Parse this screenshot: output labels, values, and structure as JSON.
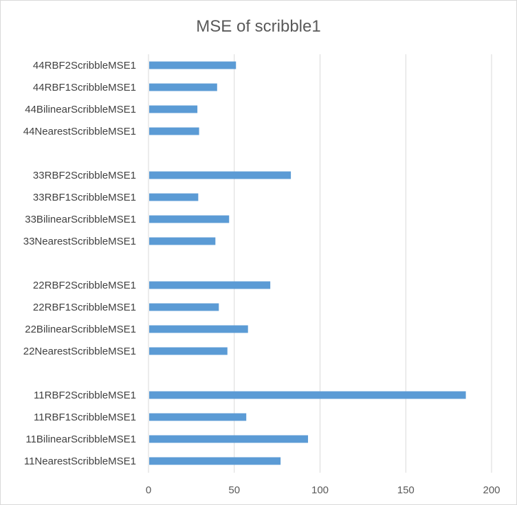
{
  "chart_data": {
    "type": "bar",
    "orientation": "horizontal",
    "title": "MSE of scribble1",
    "xlabel": "",
    "ylabel": "",
    "xlim": [
      0,
      200
    ],
    "x_ticks": [
      0,
      50,
      100,
      150,
      200
    ],
    "grid": "vertical",
    "legend": "none",
    "bar_color": "#5b9bd5",
    "groups": [
      {
        "categories": [
          "44RBF2ScribbleMSE1",
          "44RBF1ScribbleMSE1",
          "44BilinearScribbleMSE1",
          "44NearestScribbleMSE1"
        ],
        "values": [
          51,
          40,
          28.5,
          29.5
        ]
      },
      {
        "categories": [
          "33RBF2ScribbleMSE1",
          "33RBF1ScribbleMSE1",
          "33BilinearScribbleMSE1",
          "33NearestScribbleMSE1"
        ],
        "values": [
          83,
          29,
          47,
          39
        ]
      },
      {
        "categories": [
          "22RBF2ScribbleMSE1",
          "22RBF1ScribbleMSE1",
          "22BilinearScribbleMSE1",
          "22NearestScribbleMSE1"
        ],
        "values": [
          71,
          41,
          58,
          46
        ]
      },
      {
        "categories": [
          "11RBF2ScribbleMSE1",
          "11RBF1ScribbleMSE1",
          "11BilinearScribbleMSE1",
          "11NearestScribbleMSE1"
        ],
        "values": [
          185,
          57,
          93,
          77
        ]
      }
    ]
  }
}
